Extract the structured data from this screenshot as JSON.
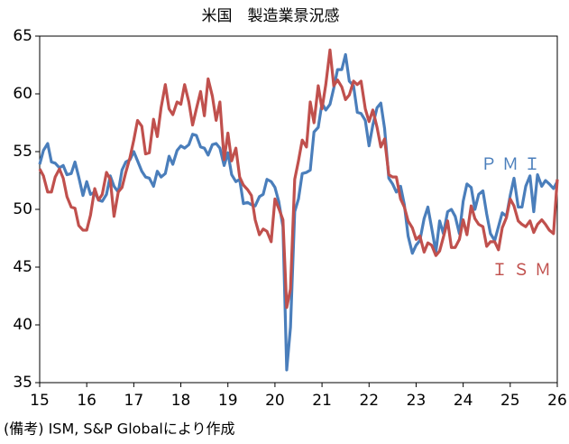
{
  "chart_data": {
    "type": "line",
    "title": "米国　製造業景況感",
    "note": "(備考) ISM, S&P Globalにより作成",
    "xlim": [
      15,
      26
    ],
    "xticks": [
      15,
      16,
      17,
      18,
      19,
      20,
      21,
      22,
      23,
      24,
      25,
      26
    ],
    "ylim": [
      35,
      65
    ],
    "yticks": [
      35,
      40,
      45,
      50,
      55,
      60,
      65
    ],
    "x": [
      15,
      15.08,
      15.17,
      15.25,
      15.33,
      15.42,
      15.5,
      15.58,
      15.67,
      15.75,
      15.83,
      15.92,
      16,
      16.08,
      16.17,
      16.25,
      16.33,
      16.42,
      16.5,
      16.58,
      16.67,
      16.75,
      16.83,
      16.92,
      17,
      17.08,
      17.17,
      17.25,
      17.33,
      17.42,
      17.5,
      17.58,
      17.67,
      17.75,
      17.83,
      17.92,
      18,
      18.08,
      18.17,
      18.25,
      18.33,
      18.42,
      18.5,
      18.58,
      18.67,
      18.75,
      18.83,
      18.92,
      19,
      19.08,
      19.17,
      19.25,
      19.33,
      19.42,
      19.5,
      19.58,
      19.67,
      19.75,
      19.83,
      19.92,
      20,
      20.08,
      20.17,
      20.25,
      20.33,
      20.42,
      20.5,
      20.58,
      20.67,
      20.75,
      20.83,
      20.92,
      21,
      21.08,
      21.17,
      21.25,
      21.33,
      21.42,
      21.5,
      21.58,
      21.67,
      21.75,
      21.83,
      21.92,
      22,
      22.08,
      22.17,
      22.25,
      22.33,
      22.42,
      22.5,
      22.58,
      22.67,
      22.75,
      22.83,
      22.92,
      23,
      23.08,
      23.17,
      23.25,
      23.33,
      23.42,
      23.5,
      23.58,
      23.67,
      23.75,
      23.83,
      23.92,
      24,
      24.08,
      24.17,
      24.25,
      24.33,
      24.42,
      24.5,
      24.58,
      24.67,
      24.75,
      24.83,
      24.92,
      25,
      25.08,
      25.17,
      25.25,
      25.33,
      25.42,
      25.5,
      25.58,
      25.67,
      25.75,
      25.83,
      25.92,
      26
    ],
    "series": [
      {
        "name": "ＰＭＩ",
        "color": "#4a7ebb",
        "values": [
          53.9,
          55.1,
          55.7,
          54.1,
          54.0,
          53.6,
          53.8,
          53.0,
          53.1,
          54.1,
          52.8,
          51.2,
          52.4,
          51.3,
          51.5,
          50.8,
          50.7,
          51.3,
          52.9,
          52.0,
          51.5,
          53.4,
          54.1,
          54.3,
          55.0,
          54.2,
          53.3,
          52.8,
          52.7,
          52.0,
          53.3,
          52.8,
          53.1,
          54.6,
          53.9,
          55.1,
          55.5,
          55.3,
          55.6,
          56.5,
          56.4,
          55.4,
          55.3,
          54.7,
          55.6,
          55.7,
          55.3,
          53.8,
          54.9,
          53.0,
          52.4,
          52.6,
          50.5,
          50.6,
          50.4,
          50.3,
          51.1,
          51.3,
          52.6,
          52.4,
          51.9,
          50.7,
          48.5,
          36.1,
          39.8,
          49.8,
          50.9,
          53.1,
          53.2,
          53.4,
          56.7,
          57.1,
          59.2,
          58.6,
          59.1,
          60.5,
          62.1,
          62.1,
          63.4,
          61.1,
          60.7,
          58.4,
          58.3,
          57.7,
          55.5,
          57.3,
          58.8,
          59.2,
          57.0,
          52.7,
          52.2,
          51.5,
          52.0,
          50.4,
          47.7,
          46.2,
          46.9,
          47.3,
          49.2,
          50.2,
          48.4,
          46.3,
          49.0,
          47.9,
          49.8,
          50.0,
          49.4,
          47.9,
          50.7,
          52.2,
          51.9,
          50.0,
          51.3,
          51.6,
          49.6,
          47.9,
          47.3,
          48.5,
          49.7,
          49.4,
          51.2,
          52.7,
          50.2,
          50.2,
          52.0,
          52.9,
          49.8,
          53.0,
          52.0,
          52.5,
          52.2,
          51.8,
          52.4
        ]
      },
      {
        "name": "ＩＳＭ",
        "color": "#c0504d",
        "values": [
          53.5,
          52.9,
          51.5,
          51.5,
          52.8,
          53.5,
          52.7,
          51.1,
          50.2,
          50.1,
          48.6,
          48.2,
          48.2,
          49.5,
          51.8,
          50.8,
          51.3,
          53.2,
          52.6,
          49.4,
          51.5,
          51.9,
          53.2,
          54.5,
          56.0,
          57.7,
          57.2,
          54.8,
          54.9,
          57.8,
          56.3,
          58.8,
          60.8,
          58.7,
          58.2,
          59.3,
          59.1,
          60.8,
          59.3,
          57.3,
          58.7,
          60.2,
          58.1,
          61.3,
          59.8,
          57.7,
          59.3,
          54.3,
          56.6,
          54.2,
          55.3,
          52.8,
          52.1,
          51.7,
          51.2,
          49.1,
          47.8,
          48.3,
          48.1,
          47.2,
          50.9,
          50.1,
          49.1,
          41.5,
          43.1,
          52.6,
          54.2,
          56.0,
          55.4,
          59.3,
          57.5,
          60.7,
          58.7,
          60.8,
          63.8,
          60.7,
          61.2,
          60.6,
          59.5,
          59.9,
          61.1,
          60.8,
          61.1,
          58.7,
          57.6,
          58.6,
          57.1,
          55.4,
          56.1,
          53.0,
          52.8,
          52.8,
          50.9,
          50.2,
          49.0,
          48.4,
          47.4,
          47.7,
          46.3,
          47.1,
          46.9,
          46.0,
          46.4,
          47.6,
          49.0,
          46.7,
          46.7,
          47.4,
          49.1,
          47.8,
          50.3,
          49.2,
          48.7,
          48.5,
          46.8,
          47.2,
          47.2,
          46.5,
          48.4,
          49.3,
          50.9,
          50.3,
          49.0,
          48.7,
          48.5,
          49.0,
          48.0,
          48.7,
          49.1,
          48.7,
          48.2,
          47.9,
          52.6
        ]
      }
    ]
  }
}
